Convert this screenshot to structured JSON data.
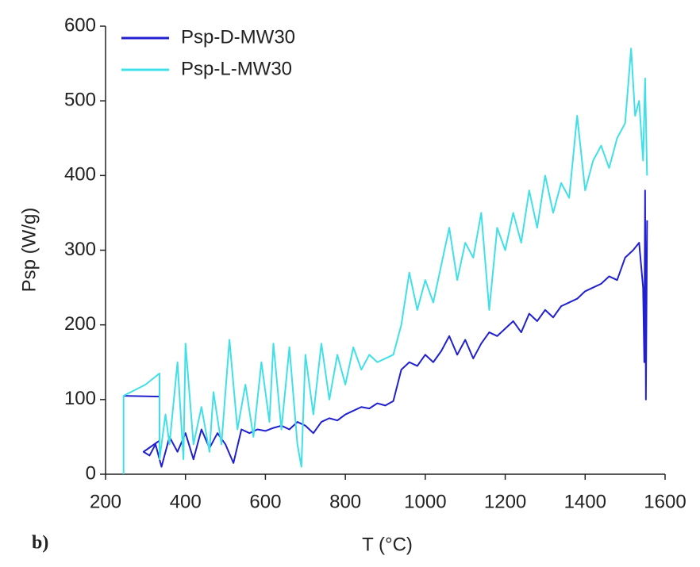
{
  "chart_data": {
    "type": "line",
    "x_label": "T (°C)",
    "y_label": "Psp (W/g)",
    "annotation": "b)",
    "xlim": [
      200,
      1600
    ],
    "ylim": [
      0,
      600
    ],
    "xticks": [
      200,
      400,
      600,
      800,
      1000,
      1200,
      1400,
      1600
    ],
    "yticks": [
      0,
      100,
      200,
      300,
      400,
      500,
      600
    ],
    "legend": "upper left",
    "series": [
      {
        "name": "Psp-D-MW30",
        "color": "#2020d0",
        "x": [
          245,
          335,
          335,
          295,
          310,
          325,
          340,
          360,
          380,
          400,
          420,
          440,
          460,
          480,
          500,
          520,
          540,
          560,
          580,
          600,
          620,
          640,
          660,
          680,
          700,
          720,
          740,
          760,
          780,
          800,
          820,
          840,
          860,
          880,
          900,
          920,
          940,
          960,
          980,
          1000,
          1020,
          1040,
          1060,
          1080,
          1100,
          1120,
          1140,
          1160,
          1180,
          1200,
          1220,
          1240,
          1260,
          1280,
          1300,
          1320,
          1340,
          1360,
          1380,
          1400,
          1420,
          1440,
          1460,
          1480,
          1500,
          1520,
          1535,
          1545,
          1548,
          1550,
          1552,
          1555
        ],
        "values": [
          105,
          104,
          45,
          30,
          25,
          40,
          10,
          50,
          30,
          55,
          20,
          60,
          35,
          55,
          40,
          15,
          60,
          55,
          60,
          58,
          62,
          65,
          60,
          70,
          65,
          55,
          70,
          75,
          72,
          80,
          85,
          90,
          88,
          95,
          92,
          98,
          140,
          150,
          145,
          160,
          150,
          165,
          185,
          160,
          180,
          155,
          175,
          190,
          185,
          195,
          205,
          190,
          215,
          205,
          220,
          210,
          225,
          230,
          235,
          245,
          250,
          255,
          265,
          260,
          290,
          300,
          310,
          250,
          150,
          380,
          100,
          340
        ]
      },
      {
        "name": "Psp-L-MW30",
        "color": "#40e0e8",
        "x": [
          245,
          245,
          300,
          335,
          335,
          350,
          360,
          380,
          395,
          400,
          420,
          440,
          460,
          470,
          490,
          510,
          530,
          550,
          570,
          590,
          610,
          620,
          640,
          660,
          680,
          690,
          700,
          720,
          740,
          760,
          780,
          800,
          820,
          840,
          860,
          880,
          900,
          920,
          940,
          960,
          980,
          1000,
          1020,
          1040,
          1060,
          1080,
          1100,
          1120,
          1140,
          1160,
          1180,
          1200,
          1220,
          1240,
          1260,
          1280,
          1300,
          1320,
          1340,
          1360,
          1380,
          1400,
          1420,
          1440,
          1460,
          1480,
          1500,
          1515,
          1525,
          1535,
          1545,
          1550,
          1555
        ],
        "values": [
          0,
          105,
          120,
          135,
          20,
          80,
          40,
          150,
          20,
          175,
          40,
          90,
          30,
          110,
          40,
          180,
          60,
          120,
          50,
          150,
          70,
          175,
          60,
          170,
          40,
          10,
          160,
          80,
          175,
          100,
          160,
          120,
          170,
          140,
          160,
          150,
          155,
          160,
          200,
          270,
          220,
          260,
          230,
          280,
          330,
          260,
          310,
          290,
          350,
          220,
          330,
          300,
          350,
          310,
          380,
          330,
          400,
          350,
          390,
          370,
          480,
          380,
          420,
          440,
          410,
          450,
          470,
          570,
          480,
          500,
          420,
          530,
          400
        ]
      }
    ]
  }
}
